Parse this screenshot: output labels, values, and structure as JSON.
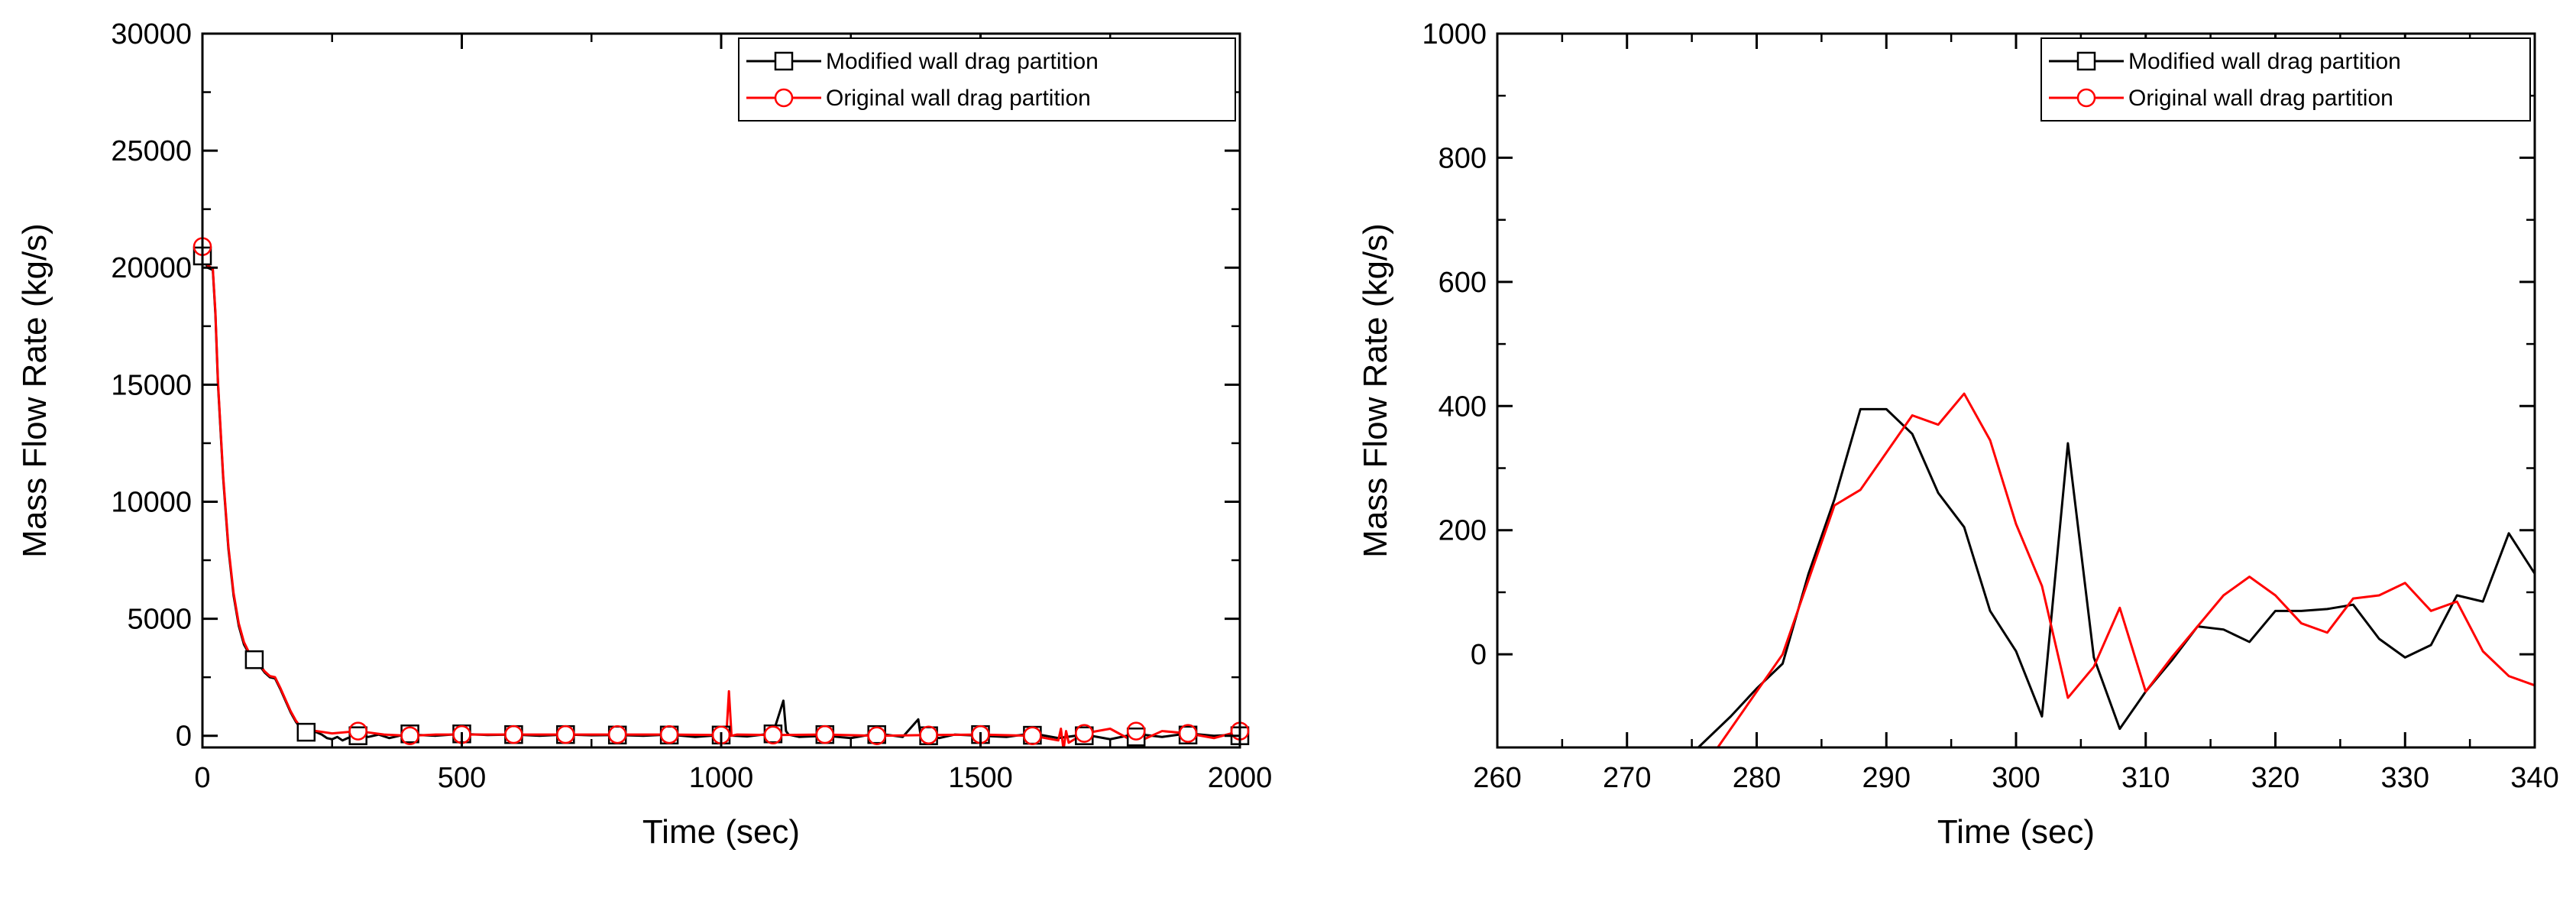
{
  "chart_data": [
    {
      "type": "line",
      "panel": "left",
      "title": "",
      "xlabel": "Time (sec)",
      "ylabel": "Mass Flow Rate (kg/s)",
      "xlim": [
        0,
        2000
      ],
      "ylim": [
        -500,
        30000
      ],
      "xticks": [
        0,
        500,
        1000,
        1500,
        2000
      ],
      "yticks": [
        0,
        5000,
        10000,
        15000,
        20000,
        25000,
        30000
      ],
      "legend_position": "top-right",
      "series": [
        {
          "name": "Modified wall drag partition",
          "color": "#000000",
          "marker": "square",
          "x": [
            0,
            5,
            10,
            20,
            25,
            30,
            40,
            50,
            60,
            70,
            80,
            90,
            100,
            110,
            120,
            130,
            140,
            150,
            160,
            170,
            180,
            190,
            200,
            210,
            220,
            230,
            240,
            250,
            260,
            270,
            280,
            290,
            300,
            320,
            340,
            360,
            380,
            400,
            450,
            500,
            550,
            600,
            650,
            700,
            750,
            800,
            850,
            900,
            950,
            1000,
            1050,
            1100,
            1120,
            1125,
            1130,
            1150,
            1200,
            1250,
            1300,
            1350,
            1380,
            1385,
            1390,
            1420,
            1450,
            1500,
            1550,
            1600,
            1650,
            1700,
            1750,
            1800,
            1850,
            1900,
            1950,
            2000
          ],
          "y": [
            20600,
            20300,
            20000,
            19900,
            18000,
            15000,
            11000,
            8000,
            6000,
            4700,
            3900,
            3500,
            3250,
            3000,
            2700,
            2500,
            2450,
            2000,
            1500,
            1000,
            600,
            300,
            150,
            200,
            150,
            50,
            -100,
            -150,
            -50,
            -200,
            -100,
            -50,
            0,
            -50,
            50,
            -100,
            0,
            50,
            0,
            80,
            30,
            50,
            0,
            50,
            20,
            30,
            0,
            50,
            -50,
            30,
            -30,
            100,
            1500,
            200,
            50,
            -50,
            0,
            -100,
            100,
            -50,
            700,
            -50,
            100,
            -100,
            50,
            0,
            -50,
            100,
            -100,
            50,
            -150,
            80,
            -50,
            100,
            0,
            50
          ],
          "marker_x": [
            0,
            100,
            200,
            300,
            400,
            500,
            600,
            700,
            800,
            900,
            1000,
            1100,
            1200,
            1300,
            1400,
            1500,
            1600,
            1700,
            1800,
            1900,
            2000
          ],
          "marker_y": [
            20500,
            3250,
            150,
            0,
            80,
            80,
            50,
            50,
            30,
            30,
            30,
            80,
            50,
            50,
            0,
            50,
            20,
            0,
            -50,
            30,
            0
          ]
        },
        {
          "name": "Original wall drag partition",
          "color": "#ff0000",
          "marker": "circle",
          "x": [
            0,
            5,
            10,
            20,
            25,
            30,
            40,
            50,
            60,
            70,
            80,
            90,
            100,
            110,
            120,
            130,
            140,
            150,
            160,
            170,
            180,
            190,
            200,
            220,
            250,
            300,
            350,
            400,
            450,
            500,
            600,
            700,
            800,
            900,
            1000,
            1010,
            1015,
            1020,
            1030,
            1100,
            1200,
            1300,
            1400,
            1500,
            1600,
            1650,
            1655,
            1660,
            1665,
            1670,
            1700,
            1750,
            1800,
            1850,
            1900,
            1950,
            2000
          ],
          "y": [
            20900,
            20400,
            20100,
            19950,
            18100,
            15100,
            11100,
            8100,
            6100,
            4800,
            4000,
            3550,
            3300,
            3050,
            2750,
            2550,
            2500,
            2050,
            1550,
            1050,
            650,
            350,
            200,
            200,
            100,
            200,
            50,
            0,
            50,
            50,
            50,
            50,
            50,
            50,
            30,
            0,
            1900,
            0,
            50,
            30,
            50,
            0,
            30,
            50,
            0,
            -200,
            300,
            -600,
            200,
            -300,
            100,
            300,
            -300,
            200,
            100,
            -100,
            200
          ],
          "marker_x": [
            0,
            300,
            400,
            500,
            600,
            700,
            800,
            900,
            1000,
            1100,
            1200,
            1300,
            1400,
            1500,
            1600,
            1700,
            1800,
            1900,
            2000
          ],
          "marker_y": [
            20900,
            200,
            0,
            50,
            50,
            50,
            50,
            50,
            30,
            30,
            50,
            0,
            30,
            50,
            0,
            100,
            200,
            100,
            200
          ]
        }
      ]
    },
    {
      "type": "line",
      "panel": "right",
      "title": "",
      "xlabel": "Time (sec)",
      "ylabel": "Mass Flow Rate (kg/s)",
      "xlim": [
        260,
        340
      ],
      "ylim": [
        -150,
        1000
      ],
      "xticks": [
        260,
        270,
        280,
        290,
        300,
        310,
        320,
        330,
        340
      ],
      "yticks": [
        0,
        200,
        400,
        600,
        800,
        1000
      ],
      "legend_position": "top-right",
      "series": [
        {
          "name": "Modified wall drag partition",
          "color": "#000000",
          "marker": "square",
          "x": [
            275.5,
            278,
            280,
            282,
            284,
            286,
            288,
            290,
            292,
            294,
            296,
            298,
            300,
            302,
            304,
            306,
            308,
            310,
            312,
            314,
            316,
            318,
            320,
            322,
            324,
            326,
            328,
            330,
            332,
            334,
            336,
            338,
            340
          ],
          "y": [
            -150,
            -100,
            -55,
            -15,
            130,
            250,
            395,
            395,
            355,
            260,
            205,
            70,
            5,
            -100,
            340,
            -5,
            -120,
            -60,
            -10,
            45,
            40,
            20,
            70,
            70,
            73,
            80,
            25,
            -5,
            15,
            95,
            85,
            195,
            130
          ],
          "marker_x": [],
          "marker_y": []
        },
        {
          "name": "Original wall drag partition",
          "color": "#ff0000",
          "marker": "circle",
          "x": [
            277,
            280,
            282,
            284,
            286,
            288,
            290,
            292,
            294,
            296,
            298,
            300,
            302,
            304,
            306,
            308,
            310,
            312,
            314,
            316,
            318,
            320,
            322,
            324,
            326,
            328,
            330,
            332,
            334,
            336,
            338,
            340
          ],
          "y": [
            -150,
            -60,
            0,
            120,
            240,
            265,
            325,
            385,
            370,
            420,
            345,
            210,
            110,
            -70,
            -20,
            75,
            -60,
            -5,
            45,
            95,
            125,
            95,
            50,
            35,
            90,
            95,
            115,
            70,
            85,
            5,
            -35,
            -50
          ],
          "marker_x": [],
          "marker_y": []
        }
      ]
    }
  ]
}
